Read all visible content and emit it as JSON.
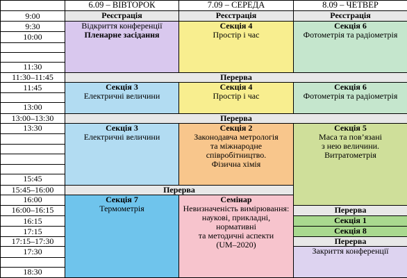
{
  "header": {
    "day1": "6.09 – ВІВТОРОК",
    "day2": "7.09 – СЕРЕДА",
    "day3": "8.09 – ЧЕТВЕР"
  },
  "times": {
    "t0900": "9:00",
    "t0930": "9:30",
    "t1000": "10:00",
    "t1130": "11:30",
    "t1130_1145": "11:30–11:45",
    "t1145": "11:45",
    "t1300": "13:00",
    "t1300_1330": "13:00–13:30",
    "t1330": "13:30",
    "t1545": "15:45",
    "t1545_1600": "15:45–16:00",
    "t1600": "16:00",
    "t1600_1615": "16:00–16:15",
    "t1615": "16:15",
    "t1715": "17:15",
    "t1715_1730": "17:15–17:30",
    "t1730": "17:30",
    "t1830": "18:30"
  },
  "registration": "Реєстрація",
  "break": "Перерва",
  "day1": {
    "opening": "Відкриття конференції",
    "plenary": "Пленарне засідання",
    "s3a_title": "Секція 3",
    "s3a_sub": "Електричні величини",
    "s3b_title": "Секція 3",
    "s3b_sub": "Електричні величини",
    "s7_title": "Секція 7",
    "s7_sub": "Термометрія"
  },
  "day2": {
    "s4a_title": "Секція 4",
    "s4a_sub": "Простір і час",
    "s4b_title": "Секція 4",
    "s4b_sub": "Простір і час",
    "s2_title": "Секція 2",
    "s2_l1": "Законодавча метрологія",
    "s2_l2": "та міжнародне",
    "s2_l3": "співробітництво.",
    "s2_l4": "Фізична хімія",
    "seminar_title": "Семінар",
    "seminar_l1": "Невизначеність вимірювання:",
    "seminar_l2": "наукові, прикладні,",
    "seminar_l3": "нормативні",
    "seminar_l4": "та методичні аспекти",
    "seminar_l5": "(UM–2020)"
  },
  "day3": {
    "s6a_title": "Секція 6",
    "s6a_sub": "Фотометрія та радіометрія",
    "s6b_title": "Секція 6",
    "s6b_sub": "Фотометрія та радіометрія",
    "s5_title": "Секція 5",
    "s5_l1": "Маса та пов’язані",
    "s5_l2": "з нею величини.",
    "s5_l3": "Витратометрія",
    "s1": "Секція 1",
    "s8": "Секція 8",
    "closing": "Закриття конференції"
  },
  "colors": {
    "purple": "#d9c8ee",
    "yellow": "#f8ee8f",
    "green": "#c5e6cd",
    "blue": "#b2dcf2",
    "orange": "#f8c68c",
    "olive": "#cfdf9a",
    "bigblue": "#6fc4ec",
    "pink": "#f7c4cd",
    "green2": "#a9d98f",
    "lavender": "#ddd3f0"
  }
}
